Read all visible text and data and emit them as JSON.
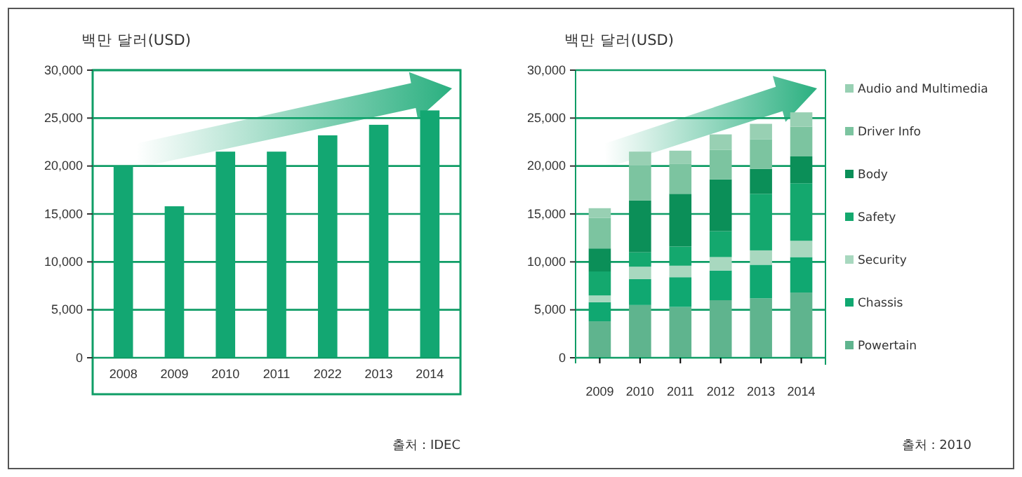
{
  "chart_data": [
    {
      "type": "bar",
      "ylabel": "백만 달러(USD)",
      "categories": [
        "2008",
        "2009",
        "2010",
        "2011",
        "2022",
        "2013",
        "2014"
      ],
      "values": [
        20000,
        15800,
        21500,
        21500,
        23200,
        24300,
        25800
      ],
      "color": "#13a772",
      "ylim": [
        0,
        30000
      ],
      "yticks": [
        {
          "value": 0,
          "label": "0"
        },
        {
          "value": 5000,
          "label": "5,000"
        },
        {
          "value": 10000,
          "label": "10,000"
        },
        {
          "value": 15000,
          "label": "15,000"
        },
        {
          "value": 20000,
          "label": "20,000"
        },
        {
          "value": 25000,
          "label": "25,000"
        },
        {
          "value": 30000,
          "label": "30,000"
        }
      ],
      "grid": "y",
      "legend": false,
      "annotations": [
        "출처 : IDEC"
      ]
    },
    {
      "type": "bar",
      "stacked": true,
      "ylabel": "백만 달러(USD)",
      "categories": [
        "2009",
        "2010",
        "2011",
        "2012",
        "2013",
        "2014"
      ],
      "series": [
        {
          "name": "Powertain",
          "color": "#5fb48e",
          "values": [
            3800,
            5500,
            5300,
            6000,
            6200,
            6800
          ]
        },
        {
          "name": "Chassis",
          "color": "#10a871",
          "values": [
            2000,
            2700,
            3100,
            3100,
            3500,
            3700
          ]
        },
        {
          "name": "Security",
          "color": "#a8d8bf",
          "values": [
            700,
            1300,
            1200,
            1400,
            1500,
            1700
          ]
        },
        {
          "name": "Safety",
          "color": "#14a86e",
          "values": [
            2500,
            1500,
            2000,
            2700,
            5900,
            6000
          ]
        },
        {
          "name": "Body",
          "color": "#0b8f58",
          "values": [
            2400,
            5400,
            5500,
            5400,
            2600,
            2800
          ]
        },
        {
          "name": "Driver Info",
          "color": "#7cc4a0",
          "values": [
            3200,
            3600,
            3100,
            3100,
            3100,
            3100
          ]
        },
        {
          "name": "Audio and Multimedia",
          "color": "#98d0b3",
          "values": [
            1000,
            1500,
            1400,
            1600,
            1600,
            1500
          ]
        }
      ],
      "ylim": [
        0,
        30000
      ],
      "yticks": [
        {
          "value": 0,
          "label": "0"
        },
        {
          "value": 5000,
          "label": "5,000"
        },
        {
          "value": 10000,
          "label": "10,000"
        },
        {
          "value": 15000,
          "label": "15,000"
        },
        {
          "value": 20000,
          "label": "20,000"
        },
        {
          "value": 25000,
          "label": "25,000"
        },
        {
          "value": 30000,
          "label": "30,000"
        }
      ],
      "grid": "y",
      "legend": "right",
      "annotations": [
        "출처 : 2010"
      ]
    }
  ]
}
